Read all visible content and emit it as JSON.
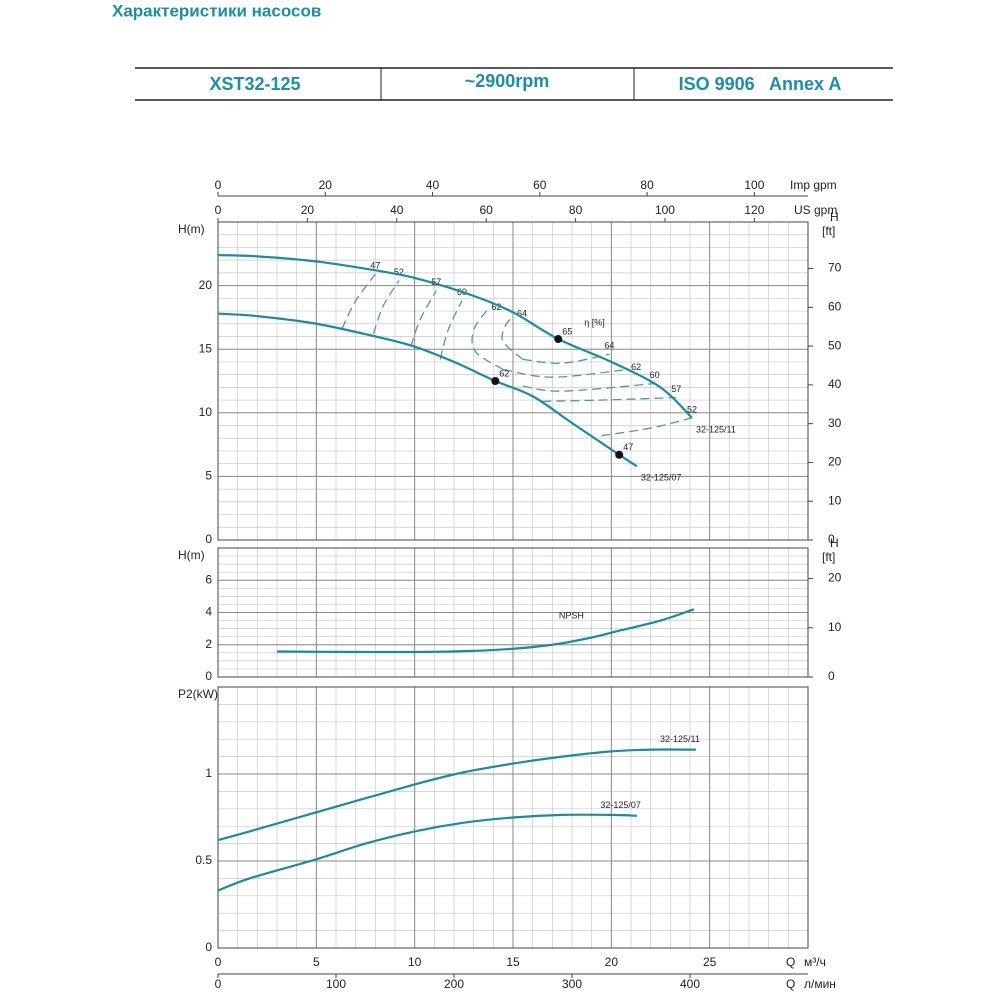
{
  "header": {
    "title": "Характеристики насосов",
    "cells": [
      "XST32-125",
      "~2900rpm",
      "ISO 9906   Annex A"
    ]
  },
  "chart_data": [
    {
      "type": "line",
      "ylabel": "H(m)",
      "y2label": "H",
      "y2unit": "[ft]",
      "xlim": [
        0,
        30
      ],
      "xticks": [
        0,
        5,
        10,
        15,
        20,
        25
      ],
      "ylim": [
        0,
        25
      ],
      "yticks": [
        0,
        5,
        10,
        15,
        20
      ],
      "y2lim": [
        0,
        82
      ],
      "y2ticks": [
        0,
        10,
        20,
        30,
        40,
        50,
        60,
        70
      ],
      "grid": true,
      "top_axes": [
        {
          "label": "Imp gpm",
          "lim": [
            0,
            110
          ],
          "ticks": [
            0,
            20,
            40,
            60,
            80,
            100
          ]
        },
        {
          "label": "US gpm",
          "lim": [
            0,
            132
          ],
          "ticks": [
            0,
            20,
            40,
            60,
            80,
            100,
            120
          ]
        }
      ],
      "series": [
        {
          "name": "32-125/11",
          "color": "#1b8ca0",
          "x": [
            0,
            2,
            5,
            8,
            10,
            12.8,
            15,
            17.3,
            20,
            22.5,
            24.1
          ],
          "values": [
            22.4,
            22.3,
            21.9,
            21.2,
            20.6,
            19.3,
            17.9,
            15.8,
            14.0,
            12.0,
            9.6
          ]
        },
        {
          "name": "32-125/07",
          "color": "#1b8ca0",
          "x": [
            0,
            2,
            5,
            8,
            10,
            12,
            14.1,
            16,
            18,
            20.4,
            21.3
          ],
          "values": [
            17.8,
            17.6,
            17.0,
            16.0,
            15.2,
            14.0,
            12.5,
            11.3,
            9.2,
            6.7,
            5.8
          ]
        }
      ],
      "efficiency_label": "η [%]",
      "efficiency_color": "#4f9a9c",
      "efficiency_lines": [
        {
          "name": "47",
          "q": [
            6.3,
            7.0,
            8.0
          ],
          "h": [
            16.6,
            18.8,
            20.9
          ]
        },
        {
          "name": "52",
          "q": [
            7.9,
            8.4,
            9.2
          ],
          "h": [
            16.2,
            18.4,
            20.4
          ]
        },
        {
          "name": "57",
          "q": [
            9.8,
            10.3,
            11.1
          ],
          "h": [
            15.2,
            17.4,
            19.6
          ]
        },
        {
          "name": "60",
          "q": [
            11.3,
            11.7,
            12.4
          ],
          "h": [
            14.2,
            16.5,
            18.8
          ]
        },
        {
          "name": "62",
          "q": [
            14.5,
            13.1,
            13.0,
            13.7
          ],
          "h": [
            13.4,
            14.8,
            16.5,
            18.1
          ]
        },
        {
          "name": "64",
          "q": [
            15.5,
            14.5,
            14.6,
            15.0
          ],
          "h": [
            14.2,
            15.6,
            16.8,
            17.6
          ]
        },
        {
          "name": "64",
          "q": [
            15.5,
            17.5,
            19.9
          ],
          "h": [
            14.2,
            13.9,
            14.6
          ]
        },
        {
          "name": "62",
          "q": [
            14.5,
            17.0,
            20.8
          ],
          "h": [
            13.4,
            12.8,
            13.4
          ]
        },
        {
          "name": "60",
          "q": [
            15.5,
            17.5,
            22.2
          ],
          "h": [
            12.1,
            11.7,
            12.3
          ]
        },
        {
          "name": "57",
          "q": [
            16.5,
            19.5,
            23.3
          ],
          "h": [
            10.9,
            11.0,
            11.2
          ]
        },
        {
          "name": "52",
          "q": [
            19.5,
            22.0,
            24.1
          ],
          "h": [
            8.2,
            8.8,
            9.6
          ]
        }
      ],
      "efficiency_points": {
        "labels": [
          "65",
          "62",
          "47"
        ],
        "q": [
          17.3,
          14.1,
          20.4
        ],
        "h": [
          15.8,
          12.5,
          6.7
        ]
      }
    },
    {
      "type": "line",
      "ylabel": "H(m)",
      "y2label": "H",
      "y2unit": "[ft]",
      "xlim": [
        0,
        30
      ],
      "xticks": [
        0,
        5,
        10,
        15,
        20,
        25
      ],
      "ylim": [
        0,
        8
      ],
      "yticks": [
        0,
        2,
        4,
        6
      ],
      "y2lim": [
        0,
        26.2
      ],
      "y2ticks": [
        0,
        10,
        20
      ],
      "grid": true,
      "series": [
        {
          "name": "NPSH",
          "color": "#1b8ca0",
          "x": [
            3,
            6,
            10,
            13,
            15,
            17,
            19,
            20.5,
            22.5,
            24.2
          ],
          "values": [
            1.58,
            1.56,
            1.55,
            1.62,
            1.75,
            2.0,
            2.45,
            2.9,
            3.5,
            4.2
          ]
        }
      ]
    },
    {
      "type": "line",
      "ylabel": "P2(kW)",
      "xlim": [
        0,
        30
      ],
      "xticks": [
        0,
        5,
        10,
        15,
        20,
        25
      ],
      "ylim": [
        0,
        1.5
      ],
      "yticks": [
        0,
        0.5,
        1
      ],
      "grid": true,
      "series": [
        {
          "name": "32-125/11",
          "color": "#1b8ca0",
          "x": [
            0,
            1.6,
            5,
            10,
            12.5,
            15,
            17.5,
            20,
            22,
            24.3
          ],
          "values": [
            0.62,
            0.67,
            0.78,
            0.94,
            1.01,
            1.06,
            1.1,
            1.13,
            1.14,
            1.14
          ]
        },
        {
          "name": "32-125/07",
          "color": "#1b8ca0",
          "x": [
            0,
            1.6,
            5,
            7.5,
            10,
            12.5,
            15,
            17.5,
            20,
            21.3
          ],
          "values": [
            0.33,
            0.4,
            0.51,
            0.6,
            0.67,
            0.72,
            0.75,
            0.765,
            0.765,
            0.76
          ]
        }
      ],
      "bottom_axes": [
        {
          "label": "Q",
          "unit": "м³/ч",
          "lim": [
            0,
            30
          ],
          "ticks": [
            0,
            5,
            10,
            15,
            20,
            25
          ]
        },
        {
          "label": "Q",
          "unit": "л/мин",
          "lim": [
            0,
            500
          ],
          "ticks": [
            0,
            100,
            200,
            300,
            400
          ]
        }
      ]
    }
  ]
}
